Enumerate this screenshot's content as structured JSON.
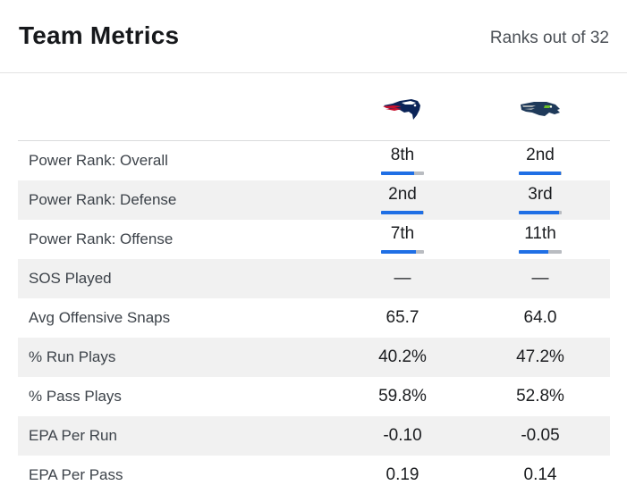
{
  "header": {
    "title": "Team Metrics",
    "subtitle": "Ranks out of 32"
  },
  "teams": [
    {
      "logo_icon": "patriots-logo-icon",
      "primary": "#0b2458",
      "accent": "#c8102e"
    },
    {
      "logo_icon": "seahawks-logo-icon",
      "primary": "#1f3a5a",
      "accent": "#69be28"
    }
  ],
  "colors": {
    "bar_fill": "#1f6fe5",
    "bar_track": "#b9bcc1",
    "row_alt": "#f1f1f1"
  },
  "rows": [
    {
      "label": "Power Rank: Overall",
      "values": [
        "8th",
        "2nd"
      ],
      "rank_bar_fraction": [
        0.78,
        0.97
      ]
    },
    {
      "label": "Power Rank: Defense",
      "values": [
        "2nd",
        "3rd"
      ],
      "rank_bar_fraction": [
        0.97,
        0.94
      ]
    },
    {
      "label": "Power Rank: Offense",
      "values": [
        "7th",
        "11th"
      ],
      "rank_bar_fraction": [
        0.81,
        0.69
      ]
    },
    {
      "label": "SOS Played",
      "values": [
        "—",
        "—"
      ]
    },
    {
      "label": "Avg Offensive Snaps",
      "values": [
        "65.7",
        "64.0"
      ]
    },
    {
      "label": "% Run Plays",
      "values": [
        "40.2%",
        "47.2%"
      ]
    },
    {
      "label": "% Pass Plays",
      "values": [
        "59.8%",
        "52.8%"
      ]
    },
    {
      "label": "EPA Per Run",
      "values": [
        "-0.10",
        "-0.05"
      ]
    },
    {
      "label": "EPA Per Pass",
      "values": [
        "0.19",
        "0.14"
      ]
    }
  ]
}
